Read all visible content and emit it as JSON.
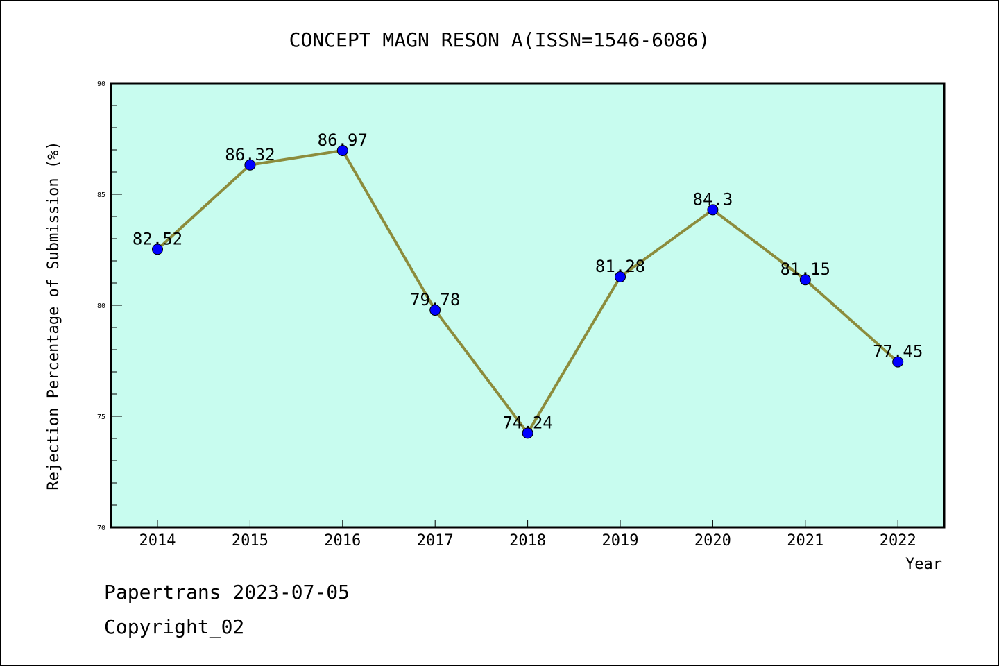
{
  "colors": {
    "plot_background": "#c8fcef",
    "line": "#8c8c3c",
    "marker": "#0000ff",
    "axis": "#000000"
  },
  "footer": {
    "line1": "Papertrans 2023-07-05",
    "line2": "Copyright_02"
  },
  "chart_data": {
    "type": "line",
    "title": "CONCEPT MAGN RESON A(ISSN=1546-6086)",
    "xlabel": "Year",
    "ylabel": "Rejection Percentage of Submission (%)",
    "ylim": [
      70,
      90
    ],
    "yticks": [
      70,
      75,
      80,
      85,
      90
    ],
    "x": [
      "2014",
      "2015",
      "2016",
      "2017",
      "2018",
      "2019",
      "2020",
      "2021",
      "2022"
    ],
    "series": [
      {
        "values": [
          82.52,
          86.32,
          86.97,
          79.78,
          74.24,
          81.28,
          84.3,
          81.15,
          77.45
        ],
        "labels": [
          "82.52",
          "86.32",
          "86.97",
          "79.78",
          "74.24",
          "81.28",
          "84.3",
          "81.15",
          "77.45"
        ]
      }
    ],
    "grid": false,
    "legend": "none"
  }
}
